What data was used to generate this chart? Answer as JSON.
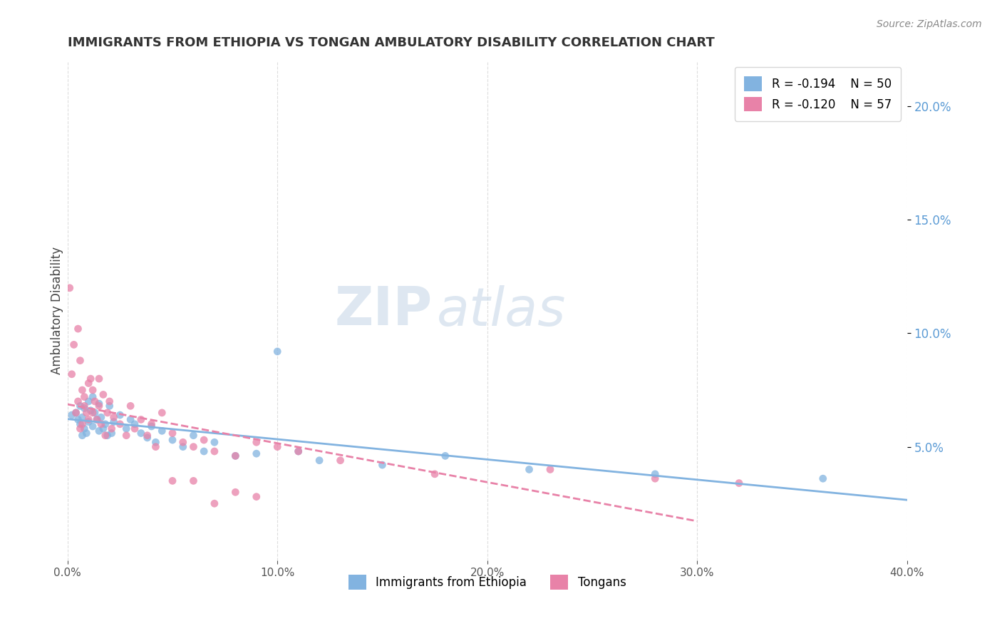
{
  "title": "IMMIGRANTS FROM ETHIOPIA VS TONGAN AMBULATORY DISABILITY CORRELATION CHART",
  "source_text": "Source: ZipAtlas.com",
  "ylabel": "Ambulatory Disability",
  "legend_ethiopia": "Immigrants from Ethiopia",
  "legend_tongan": "Tongans",
  "r_ethiopia": "R = -0.194",
  "n_ethiopia": "N = 50",
  "r_tongan": "R = -0.120",
  "n_tongan": "N = 57",
  "color_ethiopia": "#82b3e0",
  "color_tongan": "#e882a8",
  "xlim": [
    0.0,
    0.4
  ],
  "ylim": [
    0.0,
    0.22
  ],
  "xticks": [
    0.0,
    0.1,
    0.2,
    0.3,
    0.4
  ],
  "yticks_right": [
    0.05,
    0.1,
    0.15,
    0.2
  ],
  "ethiopia_x": [
    0.002,
    0.004,
    0.005,
    0.006,
    0.006,
    0.007,
    0.007,
    0.008,
    0.008,
    0.009,
    0.01,
    0.01,
    0.011,
    0.012,
    0.012,
    0.013,
    0.014,
    0.015,
    0.015,
    0.016,
    0.017,
    0.018,
    0.019,
    0.02,
    0.021,
    0.022,
    0.025,
    0.028,
    0.03,
    0.032,
    0.035,
    0.038,
    0.04,
    0.042,
    0.045,
    0.05,
    0.055,
    0.06,
    0.065,
    0.07,
    0.08,
    0.09,
    0.1,
    0.11,
    0.12,
    0.15,
    0.18,
    0.22,
    0.28,
    0.36
  ],
  "ethiopia_y": [
    0.064,
    0.065,
    0.062,
    0.06,
    0.068,
    0.055,
    0.063,
    0.058,
    0.067,
    0.056,
    0.07,
    0.061,
    0.066,
    0.059,
    0.072,
    0.065,
    0.062,
    0.057,
    0.069,
    0.063,
    0.058,
    0.06,
    0.055,
    0.068,
    0.056,
    0.061,
    0.064,
    0.058,
    0.062,
    0.06,
    0.056,
    0.054,
    0.059,
    0.052,
    0.057,
    0.053,
    0.05,
    0.055,
    0.048,
    0.052,
    0.046,
    0.047,
    0.092,
    0.048,
    0.044,
    0.042,
    0.046,
    0.04,
    0.038,
    0.036
  ],
  "tongan_x": [
    0.001,
    0.002,
    0.003,
    0.004,
    0.005,
    0.005,
    0.006,
    0.006,
    0.007,
    0.007,
    0.008,
    0.008,
    0.009,
    0.01,
    0.01,
    0.011,
    0.012,
    0.012,
    0.013,
    0.014,
    0.015,
    0.015,
    0.016,
    0.017,
    0.018,
    0.019,
    0.02,
    0.021,
    0.022,
    0.025,
    0.028,
    0.03,
    0.032,
    0.035,
    0.038,
    0.04,
    0.042,
    0.045,
    0.05,
    0.055,
    0.06,
    0.065,
    0.07,
    0.08,
    0.09,
    0.1,
    0.11,
    0.13,
    0.175,
    0.23,
    0.28,
    0.32,
    0.05,
    0.06,
    0.07,
    0.08,
    0.09
  ],
  "tongan_y": [
    0.12,
    0.082,
    0.095,
    0.065,
    0.102,
    0.07,
    0.088,
    0.058,
    0.075,
    0.06,
    0.068,
    0.072,
    0.065,
    0.078,
    0.062,
    0.08,
    0.065,
    0.075,
    0.07,
    0.062,
    0.068,
    0.08,
    0.06,
    0.073,
    0.055,
    0.065,
    0.07,
    0.058,
    0.063,
    0.06,
    0.055,
    0.068,
    0.058,
    0.062,
    0.055,
    0.06,
    0.05,
    0.065,
    0.056,
    0.052,
    0.05,
    0.053,
    0.048,
    0.046,
    0.052,
    0.05,
    0.048,
    0.044,
    0.038,
    0.04,
    0.036,
    0.034,
    0.035,
    0.035,
    0.025,
    0.03,
    0.028
  ]
}
